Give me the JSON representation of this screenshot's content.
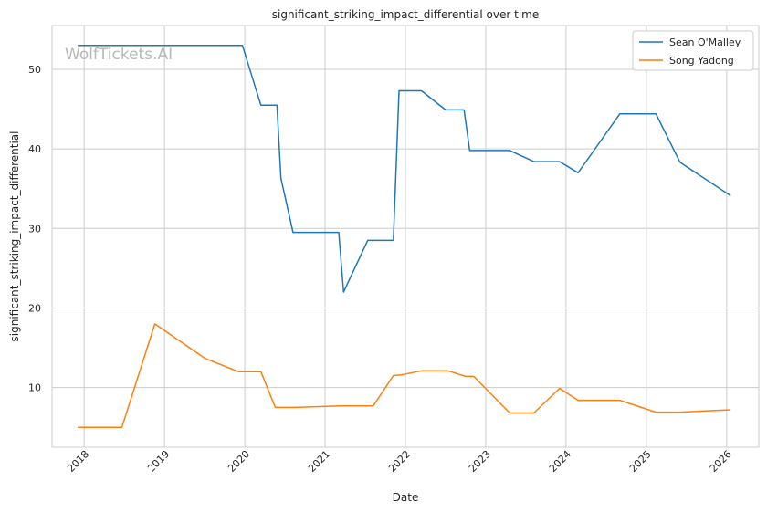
{
  "chart_data": {
    "type": "line",
    "title": "significant_striking_impact_differential over time",
    "xlabel": "Date",
    "ylabel": "significant_striking_impact_differential",
    "watermark": "WolfTickets.AI",
    "xlim": [
      2017.6,
      2026.4
    ],
    "ylim": [
      2.5,
      55.5
    ],
    "xticks": [
      {
        "value": 2018,
        "label": "2018"
      },
      {
        "value": 2019,
        "label": "2019"
      },
      {
        "value": 2020,
        "label": "2020"
      },
      {
        "value": 2021,
        "label": "2021"
      },
      {
        "value": 2022,
        "label": "2022"
      },
      {
        "value": 2023,
        "label": "2023"
      },
      {
        "value": 2024,
        "label": "2024"
      },
      {
        "value": 2025,
        "label": "2025"
      },
      {
        "value": 2026,
        "label": "2026"
      }
    ],
    "yticks": [
      {
        "value": 10,
        "label": "10"
      },
      {
        "value": 20,
        "label": "20"
      },
      {
        "value": 30,
        "label": "30"
      },
      {
        "value": 40,
        "label": "40"
      },
      {
        "value": 50,
        "label": "50"
      }
    ],
    "grid": true,
    "legend_position": "top-right",
    "series": [
      {
        "name": "Sean O'Malley",
        "color": "#1f77b4",
        "points": [
          [
            2017.92,
            53.0
          ],
          [
            2019.97,
            53.0
          ],
          [
            2020.2,
            45.5
          ],
          [
            2020.4,
            45.5
          ],
          [
            2020.45,
            36.3
          ],
          [
            2020.6,
            29.5
          ],
          [
            2021.17,
            29.5
          ],
          [
            2021.23,
            22.0
          ],
          [
            2021.53,
            28.5
          ],
          [
            2021.85,
            28.5
          ],
          [
            2021.92,
            47.3
          ],
          [
            2022.2,
            47.3
          ],
          [
            2022.5,
            44.9
          ],
          [
            2022.73,
            44.9
          ],
          [
            2022.8,
            39.8
          ],
          [
            2023.3,
            39.8
          ],
          [
            2023.6,
            38.4
          ],
          [
            2023.92,
            38.4
          ],
          [
            2024.15,
            37.0
          ],
          [
            2024.67,
            44.4
          ],
          [
            2025.12,
            44.4
          ],
          [
            2025.42,
            38.3
          ],
          [
            2026.05,
            34.1
          ]
        ]
      },
      {
        "name": "Song Yadong",
        "color": "#ff7f0e",
        "points": [
          [
            2017.92,
            5.0
          ],
          [
            2018.47,
            5.0
          ],
          [
            2018.88,
            18.0
          ],
          [
            2019.5,
            13.7
          ],
          [
            2019.92,
            12.0
          ],
          [
            2020.2,
            12.0
          ],
          [
            2020.38,
            7.5
          ],
          [
            2020.62,
            7.5
          ],
          [
            2021.2,
            7.7
          ],
          [
            2021.6,
            7.7
          ],
          [
            2021.85,
            11.5
          ],
          [
            2021.95,
            11.6
          ],
          [
            2022.2,
            12.1
          ],
          [
            2022.53,
            12.1
          ],
          [
            2022.75,
            11.4
          ],
          [
            2022.85,
            11.4
          ],
          [
            2023.3,
            6.8
          ],
          [
            2023.6,
            6.8
          ],
          [
            2023.92,
            9.9
          ],
          [
            2024.15,
            8.4
          ],
          [
            2024.67,
            8.4
          ],
          [
            2025.12,
            6.9
          ],
          [
            2025.42,
            6.9
          ],
          [
            2026.05,
            7.2
          ]
        ]
      }
    ]
  }
}
